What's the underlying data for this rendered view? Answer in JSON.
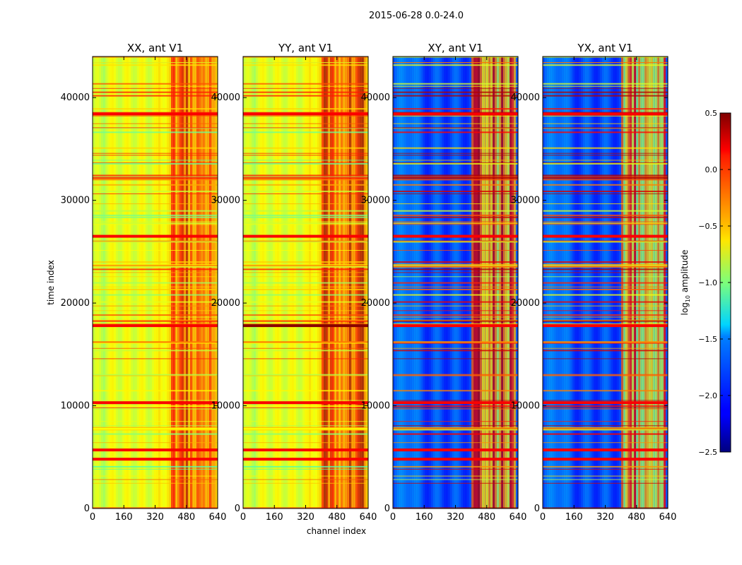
{
  "figure": {
    "suptitle": "2015-06-28 0.0-24.0"
  },
  "chart_data": {
    "type": "heatmap",
    "xlabel": "channel index",
    "ylabel": "time index",
    "xlim": [
      0,
      640
    ],
    "ylim": [
      0,
      44000
    ],
    "x_ticks": [
      "0",
      "160",
      "320",
      "480",
      "640"
    ],
    "y_ticks": [
      "0",
      "10000",
      "20000",
      "30000",
      "40000"
    ],
    "panels": [
      {
        "title": "XX, ant V1",
        "kind": "auto"
      },
      {
        "title": "YY, ant V1",
        "kind": "auto"
      },
      {
        "title": "XY, ant V1",
        "kind": "cross"
      },
      {
        "title": "YX, ant V1",
        "kind": "cross"
      }
    ],
    "rfi_band_channels": [
      400,
      620
    ],
    "bright_rfi_rows": [
      4800,
      5700,
      10300,
      17800,
      26500,
      38400
    ],
    "colorbar": {
      "label": "log10 amplitude",
      "label_base": "log",
      "label_sub": "10",
      "label_rest": " amplitude",
      "min": -2.5,
      "max": 0.5,
      "ticks": [
        "0.5",
        "0.0",
        "−0.5",
        "−1.0",
        "−1.5",
        "−2.0",
        "−2.5"
      ],
      "tick_values": [
        0.5,
        0.0,
        -0.5,
        -1.0,
        -1.5,
        -2.0,
        -2.5
      ]
    }
  }
}
